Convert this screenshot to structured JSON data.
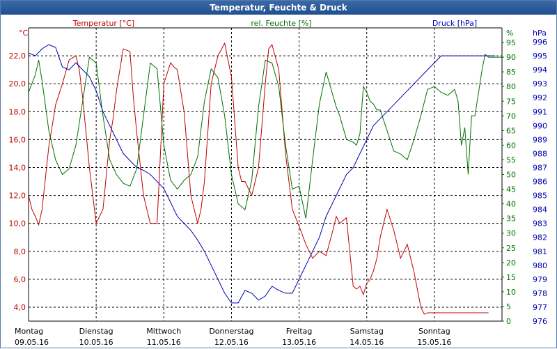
{
  "window": {
    "title": "Temperatur, Feuchte & Druck"
  },
  "chart_data": {
    "type": "line",
    "title": "Temperatur, Feuchte & Druck",
    "grid": true,
    "colors": {
      "temp": "#c00000",
      "hum": "#007000",
      "press": "#0000b0",
      "grid": "#000000"
    },
    "axes": {
      "left": {
        "unit": "°C",
        "label": "Temperatur [°C]",
        "range": [
          3.0,
          24.0
        ],
        "ticks": [
          "4,0",
          "6,0",
          "8,0",
          "10,0",
          "12,0",
          "14,0",
          "16,0",
          "18,0",
          "20,0",
          "22,0"
        ]
      },
      "right1": {
        "unit": "%",
        "label": "rel. Feuchte [%]",
        "range": [
          0,
          100
        ],
        "ticks": [
          "0",
          "5",
          "10",
          "15",
          "20",
          "25",
          "30",
          "35",
          "40",
          "45",
          "50",
          "55",
          "60",
          "65",
          "70",
          "75",
          "80",
          "85",
          "90",
          "95"
        ]
      },
      "right2": {
        "unit": "hPa",
        "label": "Druck [hPa]",
        "range": [
          976,
          997
        ],
        "ticks": [
          "976",
          "977",
          "978",
          "979",
          "980",
          "981",
          "982",
          "983",
          "984",
          "985",
          "986",
          "987",
          "988",
          "989",
          "990",
          "991",
          "992",
          "993",
          "994",
          "995",
          "996"
        ]
      }
    },
    "x_range": [
      0,
      7
    ],
    "days": [
      {
        "name": "Montag",
        "date": "09.05.16"
      },
      {
        "name": "Dienstag",
        "date": "10.05.16"
      },
      {
        "name": "Mittwoch",
        "date": "11.05.16"
      },
      {
        "name": "Donnerstag",
        "date": "12.05.16"
      },
      {
        "name": "Freitag",
        "date": "13.05.16"
      },
      {
        "name": "Samstag",
        "date": "14.05.16"
      },
      {
        "name": "Sonntag",
        "date": "15.05.16"
      }
    ],
    "series": [
      {
        "name": "Temperatur",
        "axis": "left",
        "color": "#c00000",
        "x": [
          0,
          0.05,
          0.1,
          0.15,
          0.2,
          0.3,
          0.4,
          0.5,
          0.6,
          0.7,
          0.75,
          0.8,
          0.9,
          1.0,
          1.05,
          1.1,
          1.2,
          1.25,
          1.3,
          1.4,
          1.5,
          1.55,
          1.6,
          1.7,
          1.8,
          1.9,
          2.0,
          2.1,
          2.15,
          2.2,
          2.3,
          2.4,
          2.5,
          2.55,
          2.6,
          2.7,
          2.8,
          2.9,
          3.0,
          3.1,
          3.15,
          3.2,
          3.3,
          3.4,
          3.5,
          3.55,
          3.6,
          3.7,
          3.8,
          3.9,
          4.0,
          4.1,
          4.2,
          4.3,
          4.4,
          4.5,
          4.55,
          4.6,
          4.7,
          4.8,
          4.85,
          4.9,
          4.95,
          5.0,
          5.05,
          5.1,
          5.15,
          5.2,
          5.3,
          5.4,
          5.5,
          5.6,
          5.7,
          5.8,
          5.85,
          5.9,
          6.0,
          6.1,
          6.2,
          6.25,
          6.3,
          6.35,
          6.4,
          6.45,
          6.5,
          6.55,
          6.6,
          6.7,
          6.75,
          6.8
        ],
        "y": [
          12.0,
          11.0,
          10.5,
          9.9,
          11.0,
          15.5,
          18.5,
          20.0,
          21.7,
          22.0,
          21.0,
          19.0,
          14.0,
          10.0,
          10.5,
          11.0,
          16.0,
          17.5,
          19.5,
          22.5,
          22.3,
          19.0,
          16.5,
          12.0,
          10.0,
          10.0,
          20.0,
          21.5,
          21.2,
          21.0,
          18.0,
          12.0,
          10.0,
          11.0,
          13.0,
          20.0,
          22.0,
          22.9,
          20.5,
          14.0,
          13.0,
          13.0,
          12.0,
          14.0,
          20.0,
          22.5,
          22.8,
          21.0,
          15.0,
          11.0,
          9.8,
          8.5,
          7.5,
          8.0,
          7.7,
          9.5,
          10.5,
          10.0,
          10.4,
          5.5,
          5.3,
          5.5,
          4.9,
          5.7,
          6.0,
          6.6,
          7.5,
          9.0,
          11.0,
          9.5,
          7.5,
          8.5,
          6.5,
          4.0,
          3.5,
          3.6,
          3.6,
          3.6,
          3.6,
          3.6,
          3.6,
          3.6,
          3.6,
          3.6,
          3.6,
          3.6,
          3.6,
          3.6,
          3.6,
          3.6
        ]
      },
      {
        "name": "rel. Feuchte",
        "axis": "right1",
        "color": "#007000",
        "x": [
          0,
          0.1,
          0.15,
          0.2,
          0.3,
          0.4,
          0.5,
          0.6,
          0.7,
          0.8,
          0.9,
          1.0,
          1.1,
          1.2,
          1.3,
          1.4,
          1.5,
          1.6,
          1.7,
          1.8,
          1.9,
          2.0,
          2.1,
          2.2,
          2.3,
          2.4,
          2.5,
          2.6,
          2.7,
          2.8,
          2.9,
          3.0,
          3.1,
          3.2,
          3.3,
          3.4,
          3.5,
          3.6,
          3.7,
          3.8,
          3.9,
          4.0,
          4.1,
          4.2,
          4.3,
          4.4,
          4.5,
          4.55,
          4.6,
          4.7,
          4.8,
          4.85,
          4.9,
          4.95,
          5.0,
          5.05,
          5.1,
          5.15,
          5.2,
          5.3,
          5.4,
          5.5,
          5.6,
          5.7,
          5.8,
          5.9,
          6.0,
          6.1,
          6.2,
          6.25,
          6.3,
          6.35,
          6.4,
          6.45,
          6.5,
          6.55,
          6.6,
          6.7,
          6.75,
          6.8,
          6.85,
          6.9,
          6.95,
          7.0
        ],
        "y": [
          78,
          84,
          89,
          82,
          65,
          55,
          50,
          52,
          60,
          75,
          90,
          88,
          70,
          55,
          50,
          47,
          46,
          52,
          70,
          88,
          86,
          60,
          48,
          45,
          48,
          50,
          56,
          75,
          86,
          83,
          70,
          50,
          40,
          38,
          48,
          73,
          89,
          88,
          80,
          60,
          45,
          46,
          35,
          55,
          74,
          85,
          77,
          73,
          70,
          62,
          61,
          60,
          64,
          80,
          78,
          75,
          74,
          72,
          72,
          65,
          58,
          57,
          55,
          62,
          70,
          79,
          80,
          78,
          77,
          78,
          79,
          75,
          60,
          66,
          50,
          70,
          70,
          85,
          91,
          90,
          90,
          90,
          90,
          90
        ]
      },
      {
        "name": "Druck",
        "axis": "right2",
        "color": "#0000b0",
        "x": [
          0,
          0.1,
          0.2,
          0.3,
          0.4,
          0.5,
          0.6,
          0.7,
          0.8,
          0.9,
          1.0,
          1.1,
          1.2,
          1.3,
          1.4,
          1.5,
          1.6,
          1.7,
          1.8,
          1.9,
          2.0,
          2.1,
          2.2,
          2.3,
          2.4,
          2.5,
          2.6,
          2.7,
          2.8,
          2.9,
          3.0,
          3.1,
          3.2,
          3.3,
          3.4,
          3.5,
          3.6,
          3.7,
          3.8,
          3.9,
          4.0,
          4.1,
          4.2,
          4.3,
          4.4,
          4.5,
          4.6,
          4.7,
          4.8,
          4.9,
          5.0,
          5.1,
          5.2,
          5.3,
          5.4,
          5.5,
          5.6,
          5.7,
          5.8,
          5.9,
          6.0,
          6.1,
          6.2,
          6.3,
          6.4,
          6.5,
          6.6,
          6.7,
          6.8,
          6.9
        ],
        "y": [
          995.2,
          995.0,
          995.5,
          995.8,
          995.6,
          994.2,
          994.0,
          994.5,
          994.0,
          993.5,
          992.5,
          991.0,
          990.0,
          989.0,
          988.0,
          987.5,
          987.0,
          986.8,
          986.5,
          986.0,
          985.5,
          984.5,
          983.5,
          983.0,
          982.5,
          981.8,
          981.0,
          980.0,
          979.0,
          978.0,
          977.3,
          977.3,
          978.2,
          978.0,
          977.5,
          977.8,
          978.5,
          978.2,
          978.0,
          978.0,
          979.0,
          980.0,
          981.0,
          982.0,
          983.5,
          984.5,
          985.5,
          986.5,
          987.0,
          988.0,
          989.0,
          990.0,
          990.5,
          991.0,
          991.5,
          992.0,
          992.5,
          993.0,
          993.5,
          994.0,
          994.5,
          995.0,
          995.0,
          995.0,
          995.0,
          995.0,
          995.0,
          995.0,
          995.0,
          995.0
        ]
      }
    ]
  }
}
